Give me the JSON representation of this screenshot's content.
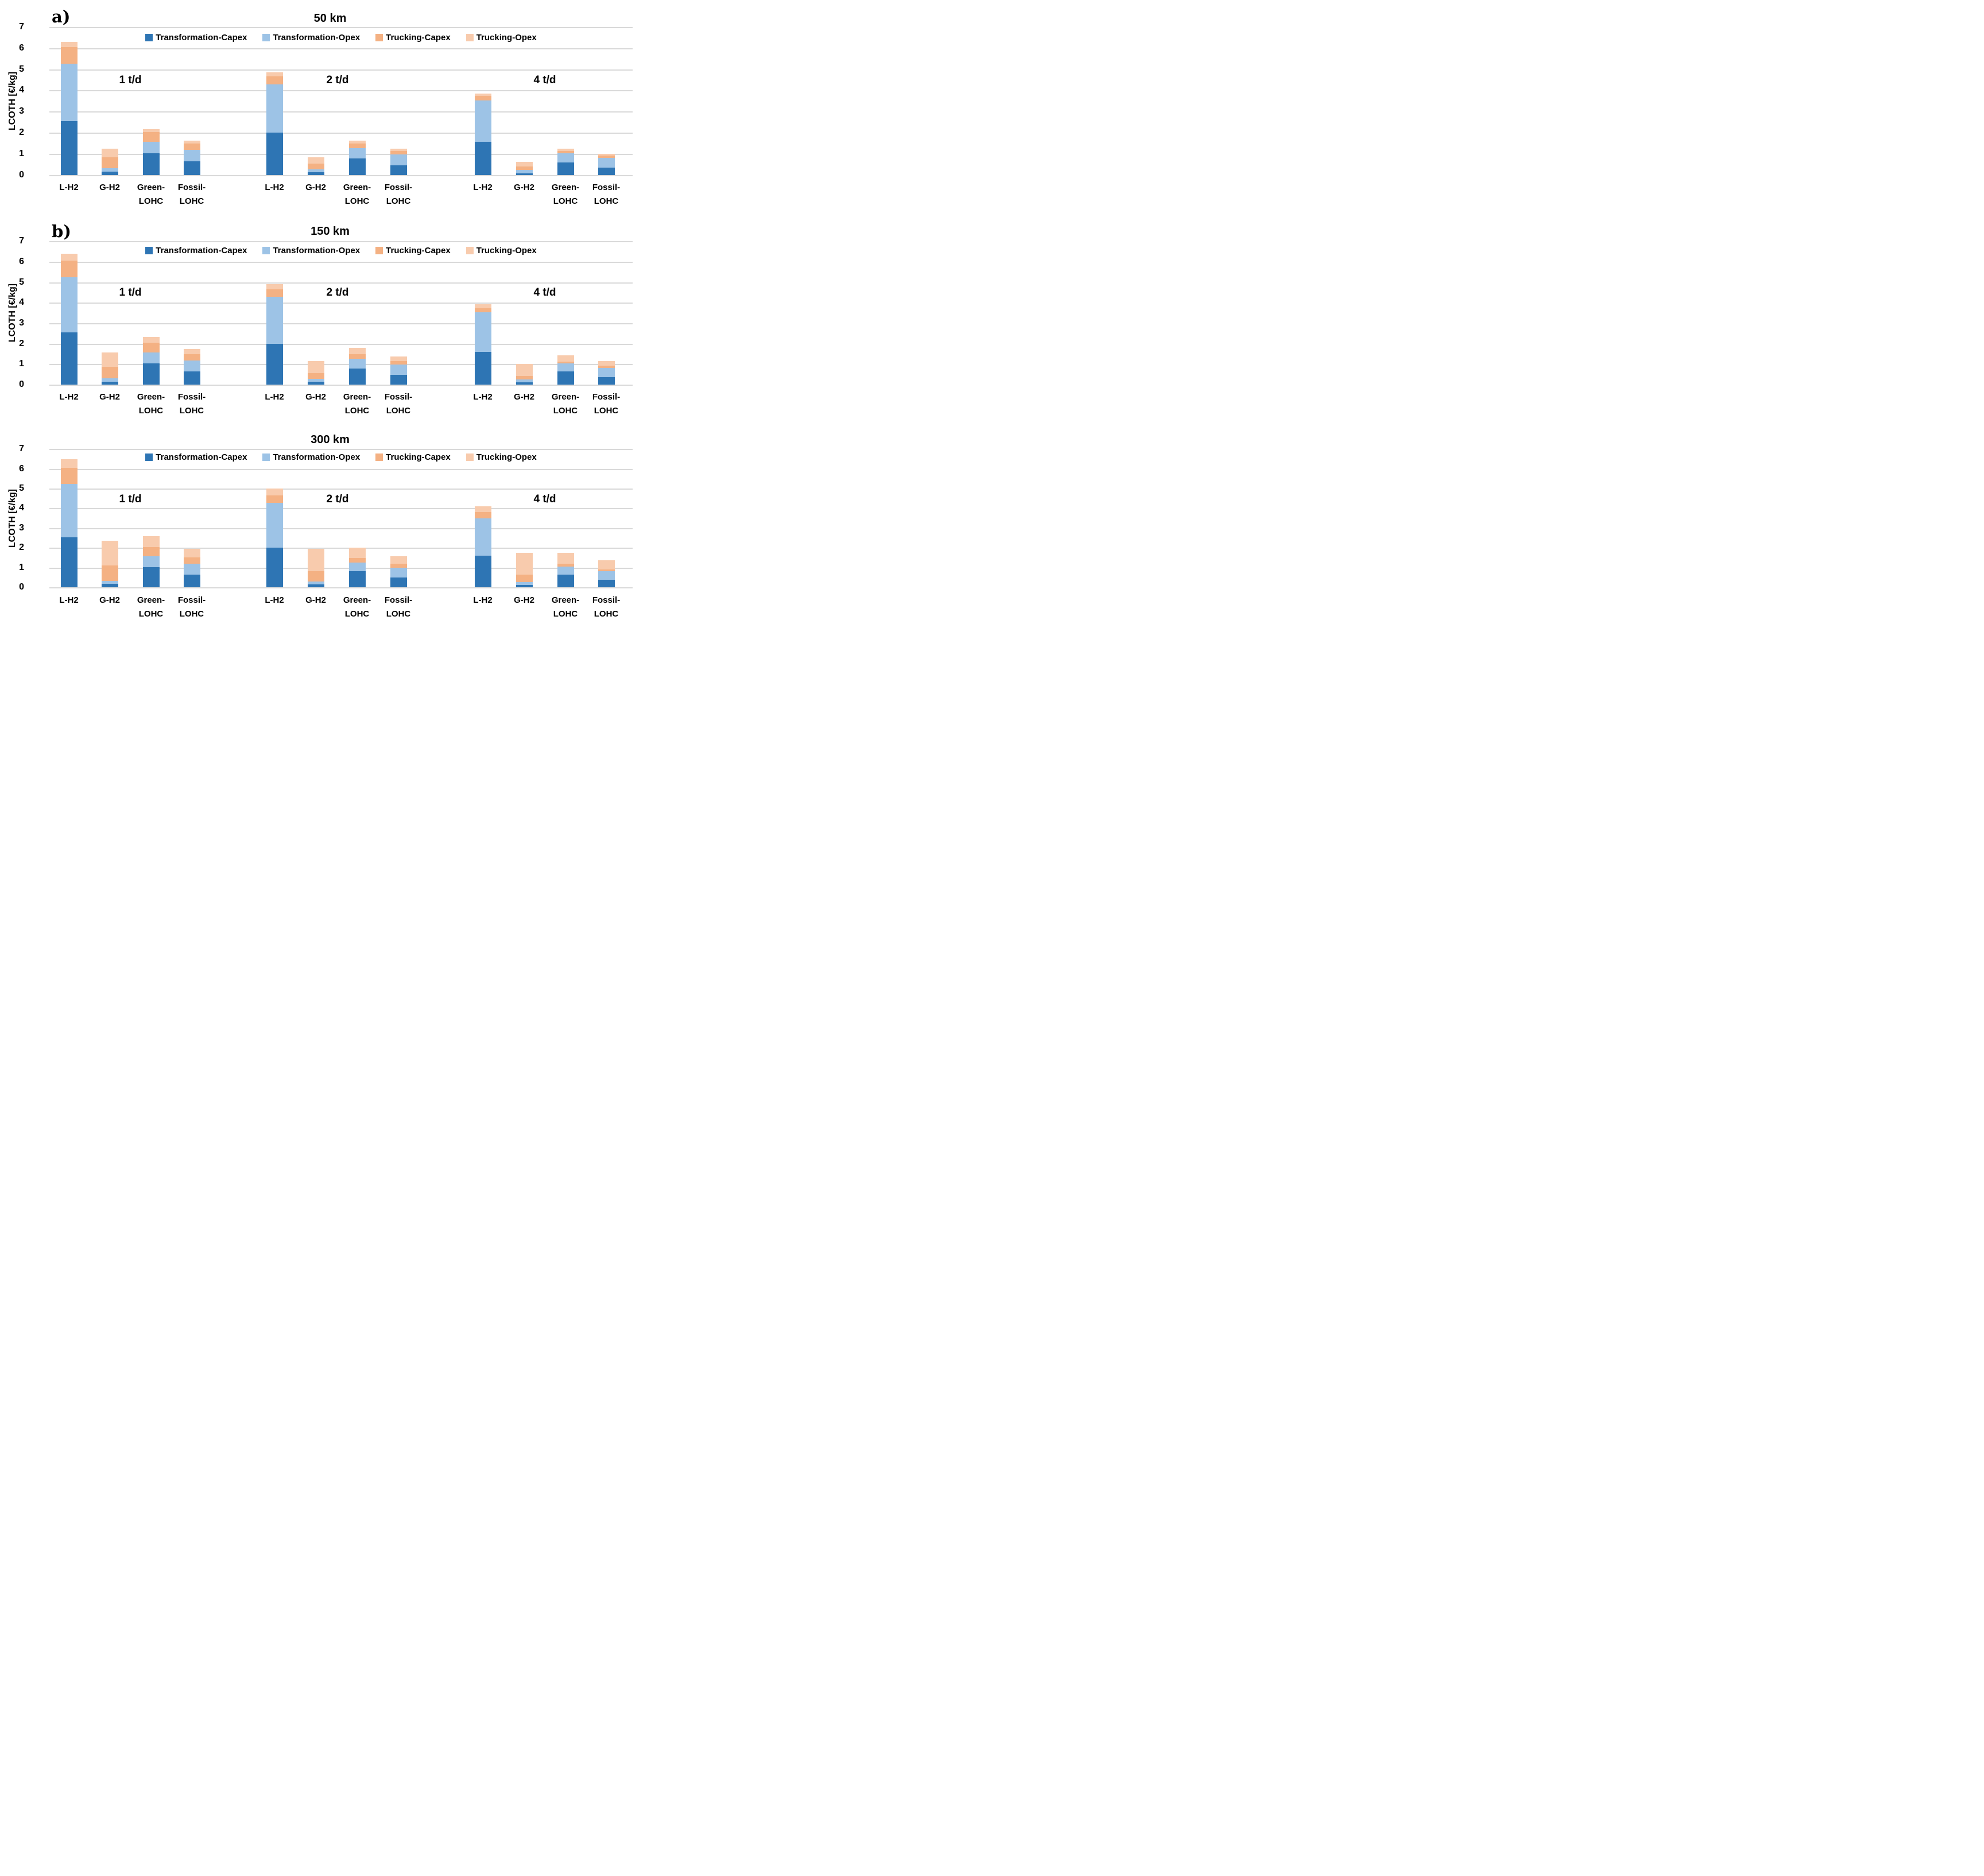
{
  "chart_data": {
    "type": "bar",
    "stacked": true,
    "ylabel": "LCOTH [€/kg]",
    "ylim": [
      0,
      7
    ],
    "y_ticks": [
      0,
      1,
      2,
      3,
      4,
      5,
      6,
      7
    ],
    "grid": true,
    "legend_position": "top",
    "legend": [
      {
        "label": "Transformation-Capex",
        "color": "#2E75B4"
      },
      {
        "label": "Transformation-Opex",
        "color": "#9DC3E6"
      },
      {
        "label": "Trucking-Capex",
        "color": "#F4B183"
      },
      {
        "label": "Trucking-Opex",
        "color": "#F8CBAD"
      }
    ],
    "gridline_color": "#D9D9D9",
    "categories": [
      "L-H2",
      "G-H2",
      "Green-LOHC",
      "Fossil-LOHC"
    ],
    "category_label_lines": [
      [
        "L-H2"
      ],
      [
        "G-H2"
      ],
      [
        "Green-",
        "LOHC"
      ],
      [
        "Fossil-",
        "LOHC"
      ]
    ],
    "group_labels": [
      "1 t/d",
      "2 t/d",
      "4 t/d"
    ],
    "series_order_note": "values per bar are [Transformation-Capex, Transformation-Opex, Trucking-Capex, Trucking-Opex] in €/kg",
    "panels": [
      {
        "panel_letter": "a)",
        "title": "50 km",
        "groups": [
          {
            "label": "1 t/d",
            "values": [
              [
                2.55,
                2.7,
                0.8,
                0.25
              ],
              [
                0.17,
                0.15,
                0.53,
                0.4
              ],
              [
                1.03,
                0.54,
                0.46,
                0.13
              ],
              [
                0.65,
                0.53,
                0.32,
                0.12
              ]
            ]
          },
          {
            "label": "2 t/d",
            "values": [
              [
                2.01,
                2.28,
                0.38,
                0.19
              ],
              [
                0.13,
                0.14,
                0.27,
                0.31
              ],
              [
                0.79,
                0.48,
                0.22,
                0.14
              ],
              [
                0.47,
                0.51,
                0.16,
                0.11
              ]
            ]
          },
          {
            "label": "4 t/d",
            "values": [
              [
                1.57,
                1.95,
                0.22,
                0.11
              ],
              [
                0.08,
                0.17,
                0.15,
                0.22
              ],
              [
                0.59,
                0.43,
                0.11,
                0.12
              ],
              [
                0.35,
                0.45,
                0.12,
                0.08
              ]
            ]
          }
        ]
      },
      {
        "panel_letter": "b)",
        "title": "150 km",
        "groups": [
          {
            "label": "1 t/d",
            "values": [
              [
                2.54,
                2.7,
                0.8,
                0.34
              ],
              [
                0.15,
                0.17,
                0.54,
                0.71
              ],
              [
                1.03,
                0.54,
                0.47,
                0.29
              ],
              [
                0.65,
                0.52,
                0.31,
                0.25
              ]
            ]
          },
          {
            "label": "2 t/d",
            "values": [
              [
                2.0,
                2.28,
                0.36,
                0.27
              ],
              [
                0.13,
                0.15,
                0.27,
                0.6
              ],
              [
                0.79,
                0.47,
                0.23,
                0.3
              ],
              [
                0.48,
                0.49,
                0.18,
                0.23
              ]
            ]
          },
          {
            "label": "4 t/d",
            "values": [
              [
                1.59,
                1.93,
                0.2,
                0.19
              ],
              [
                0.1,
                0.15,
                0.18,
                0.59
              ],
              [
                0.63,
                0.41,
                0.08,
                0.31
              ],
              [
                0.36,
                0.46,
                0.1,
                0.22
              ]
            ]
          }
        ]
      },
      {
        "panel_letter": "",
        "title": "300 km",
        "groups": [
          {
            "label": "1 t/d",
            "values": [
              [
                2.53,
                2.71,
                0.8,
                0.45
              ],
              [
                0.17,
                0.14,
                0.8,
                1.25
              ],
              [
                1.03,
                0.54,
                0.45,
                0.56
              ],
              [
                0.65,
                0.54,
                0.32,
                0.43
              ]
            ]
          },
          {
            "label": "2 t/d",
            "values": [
              [
                2.0,
                2.28,
                0.36,
                0.36
              ],
              [
                0.14,
                0.16,
                0.52,
                1.14
              ],
              [
                0.8,
                0.46,
                0.23,
                0.52
              ],
              [
                0.48,
                0.52,
                0.18,
                0.39
              ]
            ]
          },
          {
            "label": "4 t/d",
            "values": [
              [
                1.59,
                1.9,
                0.31,
                0.3
              ],
              [
                0.12,
                0.14,
                0.37,
                1.11
              ],
              [
                0.63,
                0.41,
                0.16,
                0.54
              ],
              [
                0.38,
                0.44,
                0.09,
                0.47
              ]
            ]
          }
        ]
      }
    ]
  }
}
